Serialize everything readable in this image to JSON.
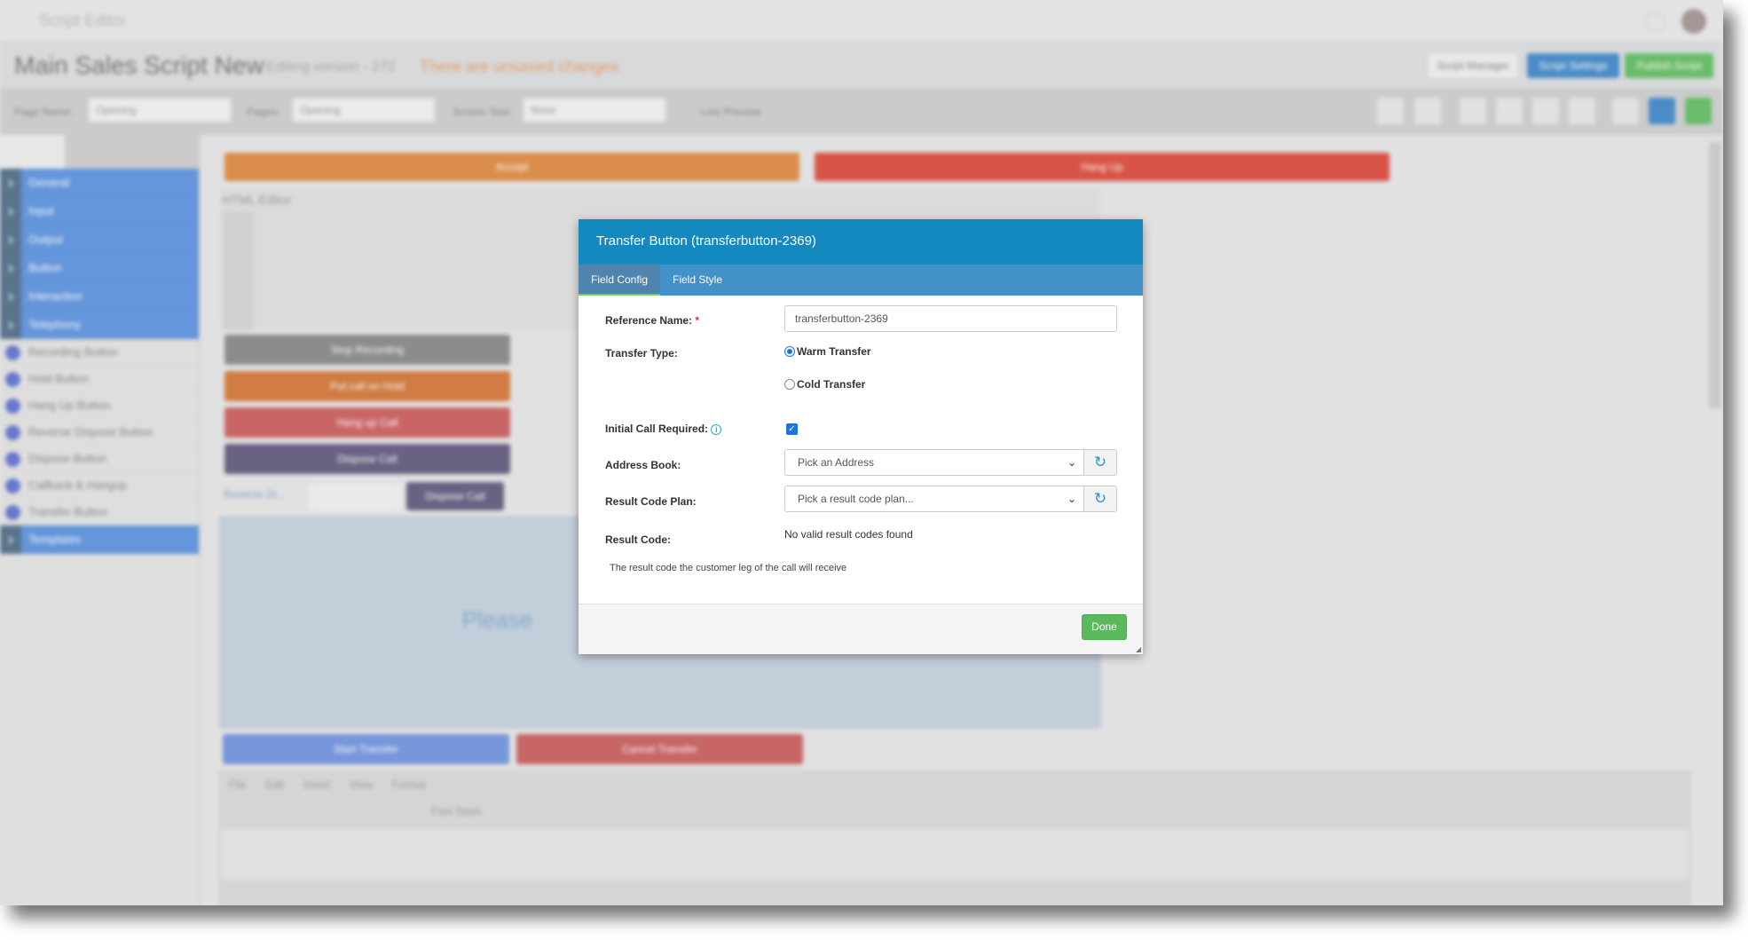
{
  "app": {
    "title": "Script Editor",
    "script_name": "Main Sales Script New",
    "version": "Editing version - 272",
    "unsaved": "There are unsaved changes",
    "buttons": {
      "manager": "Script Manager",
      "settings": "Script Settings",
      "publish": "Publish Script"
    },
    "toolbar": {
      "page_name_label": "Page Name:",
      "page_name_value": "Opening",
      "pages_label": "Pages:",
      "pages_value": "Opening",
      "screen_label": "Screen Size:",
      "screen_value": "None",
      "live_preview": "Live Preview"
    },
    "sidebar": {
      "categories": [
        "General",
        "Input",
        "Output",
        "Button",
        "Interaction",
        "Telephony"
      ],
      "items": [
        "Recording Button",
        "Hold Button",
        "Hang Up Button",
        "Reverse Dispose Button",
        "Dispose Button",
        "Callback & Hangup",
        "Transfer Button"
      ],
      "templates": "Templates"
    },
    "canvas": {
      "accept": "Accept",
      "hangup": "Hang Up",
      "html_editor": "HTML Editor",
      "stop_recording": "Stop Recording",
      "hold": "Put call on Hold",
      "hangup_call": "Hang up Call",
      "dispose_call": "Dispose Call",
      "reverse": "Reverse Di...",
      "dispose_call2": "Dispose Call",
      "please": "Please",
      "start_transfer": "Start Transfer",
      "cancel_transfer": "Cancel Transfer",
      "menu": [
        "File",
        "Edit",
        "Insert",
        "View",
        "Format"
      ],
      "font_size": "Font Sizes"
    }
  },
  "colors": {
    "header": "#1489c0",
    "tabs": "#4391c9",
    "done": "#5cb85c",
    "sidebar": "#6699e0"
  },
  "modal": {
    "title": "Transfer Button (transferbutton-2369)",
    "tabs": [
      {
        "label": "Field Config",
        "active": true
      },
      {
        "label": "Field Style",
        "active": false
      }
    ],
    "reference_label": "Reference Name:",
    "required": "*",
    "reference_value": "transferbutton-2369",
    "transfer_type_label": "Transfer Type:",
    "warm": "Warm Transfer",
    "cold": "Cold Transfer",
    "selected_transfer": "Warm Transfer",
    "initial_call_label": "Initial Call Required:",
    "initial_call_checked": true,
    "address_label": "Address Book:",
    "address_value": "Pick an Address",
    "plan_label": "Result Code Plan:",
    "plan_value": "Pick a result code plan...",
    "result_label": "Result Code:",
    "result_value": "No valid result codes found",
    "help": "The result code the customer leg of the call will receive",
    "done": "Done"
  }
}
